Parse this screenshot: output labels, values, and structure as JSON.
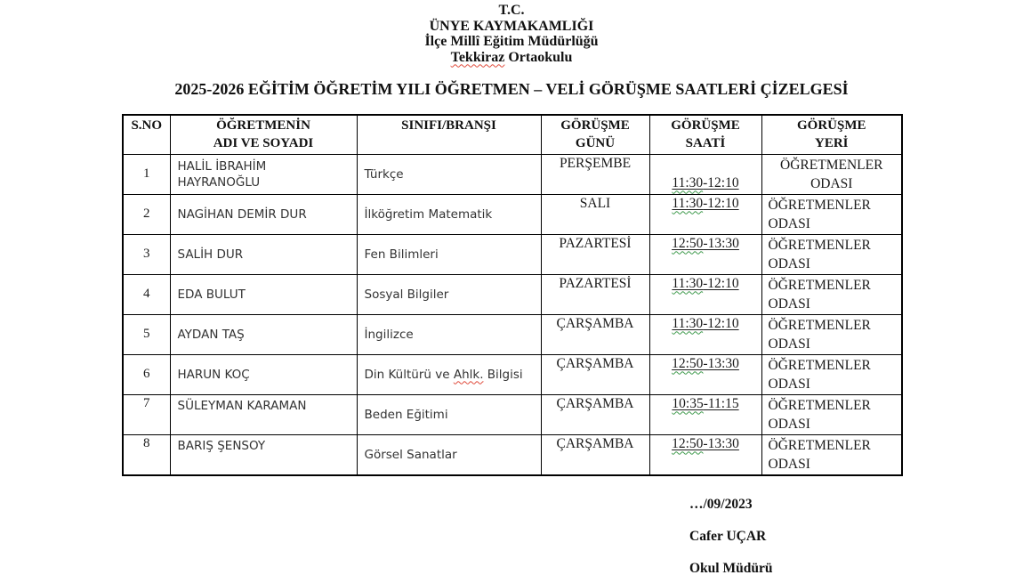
{
  "letterhead": {
    "line1": "T.C.",
    "line2": "ÜNYE KAYMAKAMLIĞI",
    "line3": "İlçe Millî Eğitim Müdürlüğü",
    "school": "Tekkiraz Ortaokulu",
    "school_misspelled_word": "Tekkiraz"
  },
  "title": "2025-2026 EĞİTİM ÖĞRETİM YILI ÖĞRETMEN – VELİ GÖRÜŞME SAATLERİ ÇİZELGESİ",
  "table": {
    "headers": [
      [
        "S.NO"
      ],
      [
        "ÖĞRETMENİN",
        "ADI VE SOYADI"
      ],
      [
        "SINIFI/BRANŞI"
      ],
      [
        "GÖRÜŞME",
        "GÜNÜ"
      ],
      [
        "GÖRÜŞME",
        "SAATİ"
      ],
      [
        "GÖRÜŞME",
        "YERİ"
      ]
    ],
    "rows": [
      {
        "no": "1",
        "name": "HALİL İBRAHİM HAYRANOĞLU",
        "branch": "Türkçe",
        "day": "PERŞEMBE",
        "time": "11:30-12:10",
        "place": "ÖĞRETMENLER ODASI"
      },
      {
        "no": "2",
        "name": "NAGİHAN DEMİR DUR",
        "branch": "İlköğretim Matematik",
        "day": "SALI",
        "time": "11:30-12:10",
        "place": "ÖĞRETMENLER ODASI"
      },
      {
        "no": "3",
        "name": "SALİH DUR",
        "branch": "Fen Bilimleri",
        "day": "PAZARTESİ",
        "time": "12:50-13:30",
        "place": "ÖĞRETMENLER ODASI"
      },
      {
        "no": "4",
        "name": "EDA BULUT",
        "branch": "Sosyal Bilgiler",
        "day": "PAZARTESİ",
        "time": "11:30-12:10",
        "place": "ÖĞRETMENLER ODASI"
      },
      {
        "no": "5",
        "name": "AYDAN TAŞ",
        "branch": "İngilizce",
        "day": "ÇARŞAMBA",
        "time": "11:30-12:10",
        "place": "ÖĞRETMENLER ODASI"
      },
      {
        "no": "6",
        "name": "HARUN KOÇ",
        "branch": "Din Kültürü ve Ahlk. Bilgisi",
        "branch_misspelled": "Ahlk.",
        "day": "ÇARŞAMBA",
        "time": "12:50-13:30",
        "place": "ÖĞRETMENLER ODASI"
      },
      {
        "no": "7",
        "name": "SÜLEYMAN KARAMAN",
        "branch": "Beden Eğitimi",
        "day": "ÇARŞAMBA",
        "time": "10:35-11:15",
        "place": "ÖĞRETMENLER ODASI"
      },
      {
        "no": "8",
        "name": "BARIŞ ŞENSOY",
        "branch": "Görsel Sanatlar",
        "day": "ÇARŞAMBA",
        "time": "12:50-13:30",
        "place": "ÖĞRETMENLER ODASI"
      }
    ]
  },
  "footer": {
    "date": "…/09/2023",
    "name": "Cafer UÇAR",
    "title": "Okul Müdürü"
  },
  "colors": {
    "text": "#1a1a1a",
    "border": "#000000",
    "spell_red": "#e04b3c",
    "grammar_green": "#3f9a4d"
  }
}
